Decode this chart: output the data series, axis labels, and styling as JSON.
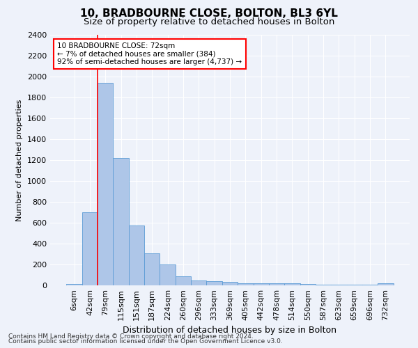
{
  "title1": "10, BRADBOURNE CLOSE, BOLTON, BL3 6YL",
  "title2": "Size of property relative to detached houses in Bolton",
  "xlabel": "Distribution of detached houses by size in Bolton",
  "ylabel": "Number of detached properties",
  "footer1": "Contains HM Land Registry data © Crown copyright and database right 2024.",
  "footer2": "Contains public sector information licensed under the Open Government Licence v3.0.",
  "annotation_line1": "10 BRADBOURNE CLOSE: 72sqm",
  "annotation_line2": "← 7% of detached houses are smaller (384)",
  "annotation_line3": "92% of semi-detached houses are larger (4,737) →",
  "bar_color": "#aec6e8",
  "bar_edge_color": "#5b9bd5",
  "vline_color": "red",
  "categories": [
    "6sqm",
    "42sqm",
    "79sqm",
    "115sqm",
    "151sqm",
    "187sqm",
    "224sqm",
    "260sqm",
    "296sqm",
    "333sqm",
    "369sqm",
    "405sqm",
    "442sqm",
    "478sqm",
    "514sqm",
    "550sqm",
    "587sqm",
    "623sqm",
    "659sqm",
    "696sqm",
    "732sqm"
  ],
  "values": [
    15,
    700,
    1940,
    1220,
    575,
    305,
    200,
    85,
    47,
    38,
    35,
    22,
    18,
    20,
    18,
    12,
    5,
    5,
    5,
    5,
    20
  ],
  "ylim": [
    0,
    2400
  ],
  "yticks": [
    0,
    200,
    400,
    600,
    800,
    1000,
    1200,
    1400,
    1600,
    1800,
    2000,
    2200,
    2400
  ],
  "background_color": "#eef2fa",
  "grid_color": "#ffffff",
  "title1_fontsize": 11,
  "title2_fontsize": 9.5,
  "ylabel_fontsize": 8,
  "xlabel_fontsize": 9,
  "tick_fontsize": 8,
  "annotation_fontsize": 7.5,
  "footer_fontsize": 6.5
}
